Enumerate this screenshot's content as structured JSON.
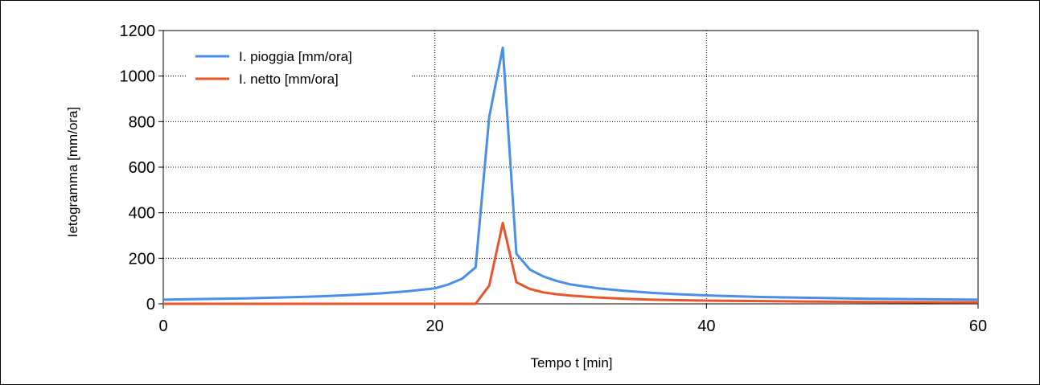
{
  "chart_data": {
    "type": "line",
    "xlabel": "Tempo t [min]",
    "ylabel": "Ietogramma [mm/ora]",
    "xlim": [
      0,
      60
    ],
    "ylim": [
      0,
      1200
    ],
    "xticks": [
      0,
      20,
      40,
      60
    ],
    "yticks": [
      0,
      200,
      400,
      600,
      800,
      1000,
      1200
    ],
    "grid": true,
    "legend": "top-left",
    "series": [
      {
        "name": "I. pioggia [mm/ora]",
        "color": "#4a8fe7",
        "x": [
          0,
          2,
          4,
          6,
          8,
          10,
          12,
          14,
          16,
          18,
          20,
          21,
          22,
          23,
          24,
          25,
          26,
          27,
          28,
          29,
          30,
          32,
          34,
          36,
          38,
          40,
          44,
          48,
          52,
          56,
          60
        ],
        "y": [
          18,
          20,
          22,
          24,
          27,
          30,
          34,
          39,
          46,
          55,
          68,
          85,
          110,
          160,
          820,
          1125,
          220,
          150,
          120,
          100,
          85,
          68,
          57,
          48,
          42,
          37,
          30,
          26,
          22,
          20,
          18
        ]
      },
      {
        "name": "I. netto [mm/ora]",
        "color": "#e8552a",
        "x": [
          0,
          10,
          20,
          23,
          24,
          25,
          26,
          27,
          28,
          29,
          30,
          32,
          34,
          36,
          38,
          40,
          44,
          48,
          52,
          56,
          60
        ],
        "y": [
          0,
          0,
          0,
          0,
          80,
          355,
          95,
          65,
          50,
          42,
          36,
          28,
          22,
          18,
          16,
          14,
          12,
          10,
          8,
          7,
          6
        ]
      }
    ]
  }
}
